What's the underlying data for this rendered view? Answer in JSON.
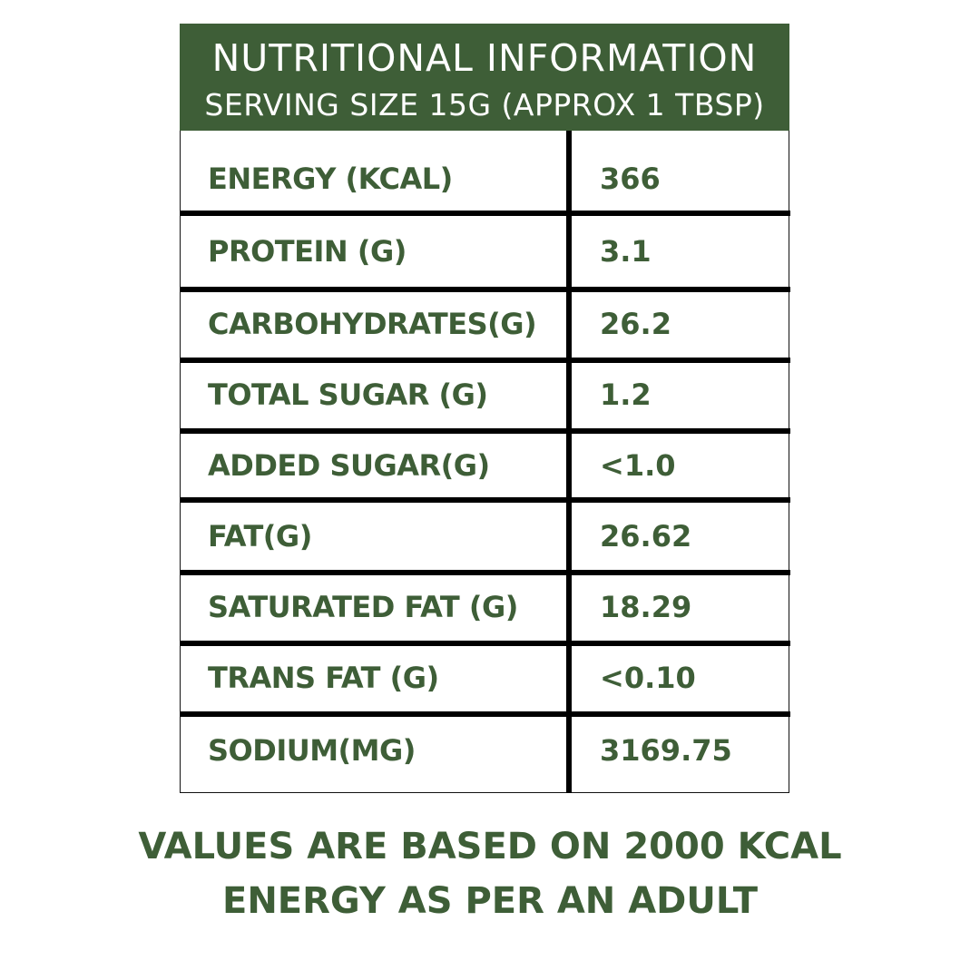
{
  "header": {
    "title": "NUTRITIONAL INFORMATION",
    "subtitle": "SERVING SIZE 15G (APPROX 1 TBSP)"
  },
  "rows": [
    {
      "label": "ENERGY (KCAL)",
      "value": "366"
    },
    {
      "label": "PROTEIN (G)",
      "value": "3.1"
    },
    {
      "label": "CARBOHYDRATES(G)",
      "value": "26.2"
    },
    {
      "label": "TOTAL SUGAR (G)",
      "value": "1.2"
    },
    {
      "label": "ADDED SUGAR(G)",
      "value": "<1.0"
    },
    {
      "label": "FAT(G)",
      "value": "26.62"
    },
    {
      "label": "SATURATED FAT (G)",
      "value": "18.29"
    },
    {
      "label": "TRANS FAT (G)",
      "value": "<0.10"
    },
    {
      "label": "SODIUM(MG)",
      "value": "3169.75"
    }
  ],
  "footer": {
    "line1": "VALUES ARE BASED ON 2000 KCAL",
    "line2": "ENERGY AS PER AN ADULT"
  },
  "colors": {
    "brand_green": "#3e5e37",
    "rule": "#000000"
  }
}
